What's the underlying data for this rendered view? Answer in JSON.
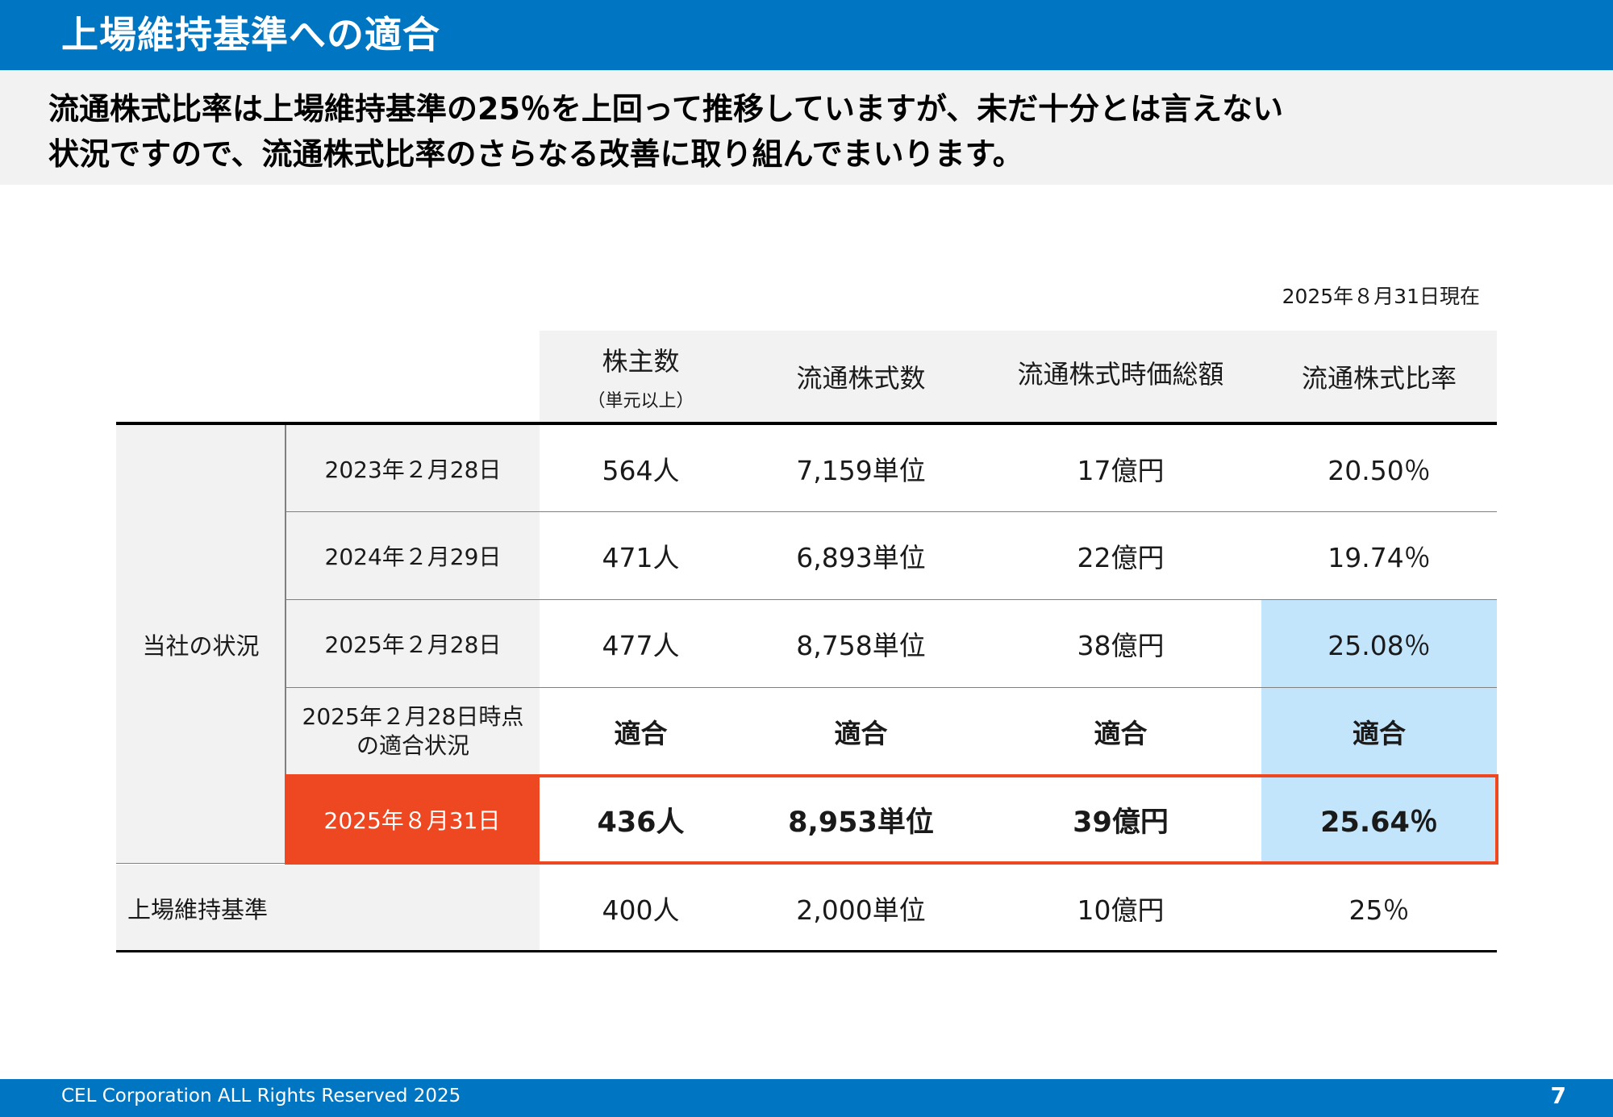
{
  "header": {
    "title": "上場維持基準への適合"
  },
  "lead": {
    "line1": "流通株式比率は上場維持基準の25％を上回って推移していますが、未だ十分とは言えない",
    "line2": "状況ですので、流通株式比率のさらなる改善に取り組んでまいります。"
  },
  "as_of": "2025年８月31日現在",
  "table": {
    "columns": [
      {
        "label": "株主数",
        "sub": "（単元以上）"
      },
      {
        "label": "流通株式数"
      },
      {
        "label": "流通株式時価総額"
      },
      {
        "label": "流通株式比率"
      }
    ],
    "group_label": "当社の状況",
    "rows": [
      {
        "date": "2023年２月28日",
        "values": [
          "564人",
          "7,159単位",
          "17億円",
          "20.50％"
        ]
      },
      {
        "date": "2024年２月29日",
        "values": [
          "471人",
          "6,893単位",
          "22億円",
          "19.74％"
        ]
      },
      {
        "date": "2025年２月28日",
        "values": [
          "477人",
          "8,758単位",
          "38億円",
          "25.08％"
        ]
      },
      {
        "date_line1": "2025年２月28日時点",
        "date_line2": "の適合状況",
        "values": [
          "適合",
          "適合",
          "適合",
          "適合"
        ]
      },
      {
        "date": "2025年８月31日",
        "values": [
          "436人",
          "8,953単位",
          "39億円",
          "25.64％"
        ]
      }
    ],
    "standard": {
      "label": "上場維持基準",
      "values": [
        "400人",
        "2,000単位",
        "10億円",
        "25％"
      ]
    }
  },
  "colors": {
    "brand_blue": "#0075c2",
    "highlight_red": "#ee4822",
    "ratio_blue": "#c3e5fb"
  },
  "footer": {
    "copyright": "CEL Corporation ALL Rights Reserved 2025",
    "page_number": "7"
  }
}
